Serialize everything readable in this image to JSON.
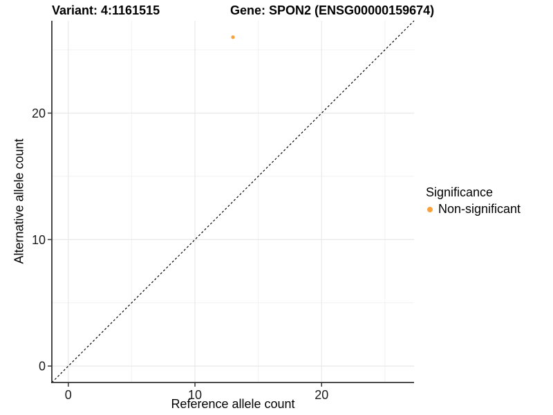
{
  "chart_data": {
    "type": "scatter",
    "title_left": "Variant: 4:1161515",
    "title_right": "Gene: SPON2 (ENSG00000159674)",
    "xlabel": "Reference allele count",
    "ylabel": "Alternative allele count",
    "xlim": [
      -1.3,
      27.3
    ],
    "ylim": [
      -1.3,
      27.3
    ],
    "xticks": [
      0,
      10,
      20
    ],
    "yticks": [
      0,
      10,
      20
    ],
    "minor_xticks": [
      5,
      15,
      25
    ],
    "minor_yticks": [
      5,
      15,
      25
    ],
    "points": [
      {
        "x": 13,
        "y": 26,
        "series": "Non-significant"
      }
    ],
    "identity_line": {
      "style": "dashed",
      "color": "#000000"
    },
    "grid": true,
    "legend": {
      "position": "right",
      "title": "Significance",
      "items": [
        {
          "label": "Non-significant",
          "color": "#F9A23C"
        }
      ]
    },
    "colors": {
      "point": "#F9A23C",
      "grid_major": "#E8E8E8",
      "grid_minor": "#F1F1F1",
      "axis": "#333333",
      "tick_text": "#1A1A1A"
    }
  }
}
